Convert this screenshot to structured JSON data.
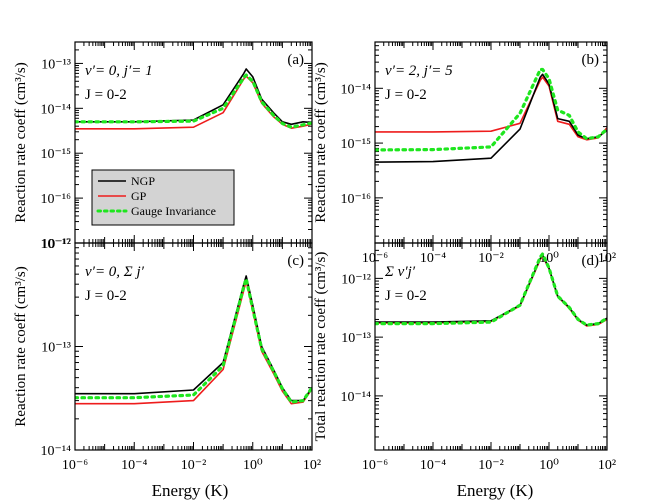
{
  "figure": {
    "xlabel": "Energy (K)",
    "legend": {
      "entries": [
        {
          "label": "NGP",
          "color": "#000000",
          "style": "solid"
        },
        {
          "label": "GP",
          "color": "#ee1c1c",
          "style": "solid"
        },
        {
          "label": "Gauge Invariance",
          "color": "#1ee61e",
          "style": "dotted"
        }
      ]
    }
  },
  "chart_data": [
    {
      "id": "a",
      "type": "line",
      "panel_label": "(a)",
      "title_lines": [
        "v′= 0, j′= 1",
        "J = 0-2"
      ],
      "ylabel": "Reaction rate coeff (cm³/s)",
      "xlabel": "",
      "xscale": "log",
      "yscale": "log",
      "xlim": [
        1e-06,
        100
      ],
      "ylim": [
        1e-17,
        3e-13
      ],
      "xticks": [],
      "yticks": [
        "10⁻¹⁷",
        "10⁻¹⁶",
        "10⁻¹⁵",
        "10⁻¹⁴",
        "10⁻¹³"
      ],
      "ytick_values": [
        1e-17,
        1e-16,
        1e-15,
        1e-14,
        1e-13
      ],
      "x": [
        1e-06,
        0.0001,
        0.01,
        0.1,
        0.5,
        0.6,
        1,
        2,
        5,
        10,
        20,
        50,
        100
      ],
      "series": [
        {
          "name": "NGP",
          "values": [
            5e-15,
            5e-15,
            5.5e-15,
            1.2e-14,
            6e-14,
            7.5e-14,
            5e-14,
            1.6e-14,
            8e-15,
            5e-15,
            4.4e-15,
            5e-15,
            4.8e-15
          ]
        },
        {
          "name": "GP",
          "values": [
            3.5e-15,
            3.5e-15,
            3.8e-15,
            8e-15,
            4.5e-14,
            5.2e-14,
            3.7e-14,
            1.3e-14,
            6.5e-15,
            4.4e-15,
            3.6e-15,
            4e-15,
            4.5e-15
          ]
        },
        {
          "name": "Gauge Invariance",
          "values": [
            5e-15,
            5e-15,
            5.2e-15,
            1e-14,
            4.8e-14,
            5.5e-14,
            4e-14,
            1.4e-14,
            7e-15,
            4.6e-15,
            3.8e-15,
            4.3e-15,
            4.7e-15
          ]
        }
      ]
    },
    {
      "id": "b",
      "type": "line",
      "panel_label": "(b)",
      "title_lines": [
        "v′= 2, j′= 5",
        "J = 0-2"
      ],
      "ylabel": "Reaction rate coeff (cm³/s)",
      "xlabel": "Energy (K)",
      "xscale": "log",
      "yscale": "log",
      "xlim": [
        1e-06,
        100
      ],
      "ylim": [
        1.5e-17,
        7e-14
      ],
      "xticks": [
        "10⁻⁶",
        "10⁻⁴",
        "10⁻²",
        "10⁰",
        "10²"
      ],
      "xtick_values": [
        1e-06,
        0.0001,
        0.01,
        1,
        100
      ],
      "yticks": [
        "10⁻¹⁶",
        "10⁻¹⁵",
        "10⁻¹⁴"
      ],
      "ytick_values": [
        1e-16,
        1e-15,
        1e-14
      ],
      "x": [
        1e-06,
        0.0001,
        0.01,
        0.1,
        0.5,
        0.6,
        1,
        2,
        5,
        10,
        20,
        50,
        100
      ],
      "series": [
        {
          "name": "NGP",
          "values": [
            4.5e-16,
            4.6e-16,
            5.3e-16,
            1.8e-15,
            1.6e-14,
            1.8e-14,
            1.2e-14,
            2.8e-15,
            2.5e-15,
            1.4e-15,
            1.2e-15,
            1.3e-15,
            1.7e-15
          ]
        },
        {
          "name": "GP",
          "values": [
            1.6e-15,
            1.6e-15,
            1.65e-15,
            2.3e-15,
            1.4e-14,
            1.6e-14,
            1.1e-14,
            2.5e-15,
            2.2e-15,
            1.3e-15,
            1.15e-15,
            1.25e-15,
            1.9e-15
          ]
        },
        {
          "name": "Gauge Invariance",
          "values": [
            7.5e-16,
            7.6e-16,
            8.5e-16,
            3.5e-15,
            2.2e-14,
            2.2e-14,
            1.5e-14,
            4e-15,
            3.2e-15,
            1.6e-15,
            1.2e-15,
            1.3e-15,
            1.8e-15
          ]
        }
      ]
    },
    {
      "id": "c",
      "type": "line",
      "panel_label": "(c)",
      "title_lines": [
        "v′= 0, Σ j′",
        "J = 0-2"
      ],
      "ylabel": "Reaction rate coeff (cm³/s)",
      "xlabel": "Energy (K)",
      "xscale": "log",
      "yscale": "log",
      "xlim": [
        1e-06,
        100
      ],
      "ylim": [
        1e-14,
        1e-12
      ],
      "xticks": [
        "10⁻⁶",
        "10⁻⁴",
        "10⁻²",
        "10⁰",
        "10²"
      ],
      "xtick_values": [
        1e-06,
        0.0001,
        0.01,
        1,
        100
      ],
      "yticks": [
        "10⁻¹⁴",
        "10⁻¹³",
        "10⁻¹²"
      ],
      "ytick_values": [
        1e-14,
        1e-13,
        1e-12
      ],
      "x": [
        1e-06,
        0.0001,
        0.01,
        0.1,
        0.5,
        0.6,
        1,
        2,
        5,
        10,
        20,
        50,
        100
      ],
      "series": [
        {
          "name": "NGP",
          "values": [
            3.5e-14,
            3.5e-14,
            3.8e-14,
            7e-14,
            4e-13,
            4.8e-13,
            2.5e-13,
            1e-13,
            6e-14,
            4e-14,
            3e-14,
            3e-14,
            4e-14
          ]
        },
        {
          "name": "GP",
          "values": [
            2.8e-14,
            2.8e-14,
            3e-14,
            6e-14,
            3.5e-13,
            4.3e-13,
            2.2e-13,
            9e-14,
            5.5e-14,
            3.7e-14,
            2.8e-14,
            2.9e-14,
            3.9e-14
          ]
        },
        {
          "name": "Gauge Invariance",
          "values": [
            3.2e-14,
            3.2e-14,
            3.4e-14,
            6.5e-14,
            3.8e-13,
            4.5e-13,
            2.3e-13,
            9.5e-14,
            5.8e-14,
            3.9e-14,
            2.9e-14,
            3e-14,
            4e-14
          ]
        }
      ]
    },
    {
      "id": "d",
      "type": "line",
      "panel_label": "(d)",
      "title_lines": [
        "Σ v′j′",
        "J = 0-2"
      ],
      "ylabel": "Total reaction rate coeff (cm³/s)",
      "xlabel": "Energy (K)",
      "xscale": "log",
      "yscale": "log",
      "xlim": [
        1e-06,
        100
      ],
      "ylim": [
        1.2e-15,
        4e-12
      ],
      "xticks": [
        "10⁻⁶",
        "10⁻⁴",
        "10⁻²",
        "10⁰",
        "10²"
      ],
      "xtick_values": [
        1e-06,
        0.0001,
        0.01,
        1,
        100
      ],
      "yticks": [
        "10⁻¹⁴",
        "10⁻¹³",
        "10⁻¹²"
      ],
      "ytick_values": [
        1e-14,
        1e-13,
        1e-12
      ],
      "x": [
        1e-06,
        0.0001,
        0.01,
        0.1,
        0.5,
        0.6,
        1,
        2,
        5,
        10,
        20,
        50,
        100
      ],
      "series": [
        {
          "name": "NGP",
          "values": [
            1.8e-13,
            1.8e-13,
            1.9e-13,
            3.5e-13,
            2.2e-12,
            2.5e-12,
            1.5e-12,
            5e-13,
            3.2e-13,
            2e-13,
            1.6e-13,
            1.7e-13,
            2.1e-13
          ]
        },
        {
          "name": "GP",
          "values": [
            1.75e-13,
            1.75e-13,
            1.85e-13,
            3.4e-13,
            2.1e-12,
            2.4e-12,
            1.45e-12,
            4.9e-13,
            3.1e-13,
            1.95e-13,
            1.55e-13,
            1.65e-13,
            2e-13
          ]
        },
        {
          "name": "Gauge Invariance",
          "values": [
            1.7e-13,
            1.7e-13,
            1.8e-13,
            3.5e-13,
            2.3e-12,
            2.6e-12,
            1.5e-12,
            5e-13,
            3.2e-13,
            2e-13,
            1.6e-13,
            1.7e-13,
            2.1e-13
          ]
        }
      ]
    }
  ]
}
